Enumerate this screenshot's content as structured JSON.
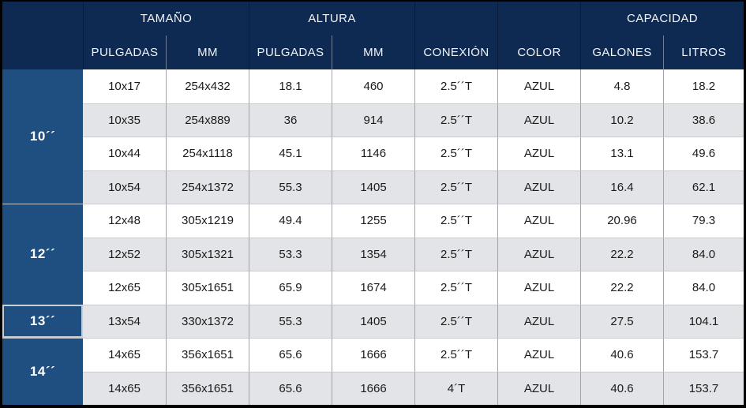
{
  "chart_data": {
    "type": "table",
    "column_groups": [
      {
        "label": "TAMAÑO",
        "span": 2
      },
      {
        "label": "ALTURA",
        "span": 2
      },
      {
        "label": "CAPACIDAD",
        "span": 2
      }
    ],
    "columns": [
      "PULGADAS",
      "MM",
      "PULGADAS",
      "MM",
      "CONEXIÓN",
      "COLOR",
      "GALONES",
      "LITROS"
    ],
    "row_groups": [
      {
        "label": "10´´",
        "highlighted": false,
        "rows": [
          [
            "10x17",
            "254x432",
            "18.1",
            "460",
            "2.5´´T",
            "AZUL",
            "4.8",
            "18.2"
          ],
          [
            "10x35",
            "254x889",
            "36",
            "914",
            "2.5´´T",
            "AZUL",
            "10.2",
            "38.6"
          ],
          [
            "10x44",
            "254x1118",
            "45.1",
            "1146",
            "2.5´´T",
            "AZUL",
            "13.1",
            "49.6"
          ],
          [
            "10x54",
            "254x1372",
            "55.3",
            "1405",
            "2.5´´T",
            "AZUL",
            "16.4",
            "62.1"
          ]
        ]
      },
      {
        "label": "12´´",
        "highlighted": false,
        "rows": [
          [
            "12x48",
            "305x1219",
            "49.4",
            "1255",
            "2.5´´T",
            "AZUL",
            "20.96",
            "79.3"
          ],
          [
            "12x52",
            "305x1321",
            "53.3",
            "1354",
            "2.5´´T",
            "AZUL",
            "22.2",
            "84.0"
          ],
          [
            "12x65",
            "305x1651",
            "65.9",
            "1674",
            "2.5´´T",
            "AZUL",
            "22.2",
            "84.0"
          ]
        ]
      },
      {
        "label": "13´´",
        "highlighted": true,
        "rows": [
          [
            "13x54",
            "330x1372",
            "55.3",
            "1405",
            "2.5´´T",
            "AZUL",
            "27.5",
            "104.1"
          ]
        ]
      },
      {
        "label": "14´´",
        "highlighted": false,
        "rows": [
          [
            "14x65",
            "356x1651",
            "65.6",
            "1666",
            "2.5´´T",
            "AZUL",
            "40.6",
            "153.7"
          ],
          [
            "14x65",
            "356x1651",
            "65.6",
            "1666",
            "4´T",
            "AZUL",
            "40.6",
            "153.7"
          ]
        ]
      }
    ],
    "layout": {
      "header_rows": 2,
      "row_striping": "alternating white / light gray",
      "highlighted_row_group": "13´´"
    }
  },
  "colors": {
    "header_bg": "#0e2a52",
    "row_label_bg": "#1e4f80",
    "stripe_gray": "#e3e4e7",
    "stripe_white": "#ffffff",
    "outer_border": "#000000",
    "header_text": "#f2f4f7",
    "data_text": "#1b1b1b"
  }
}
